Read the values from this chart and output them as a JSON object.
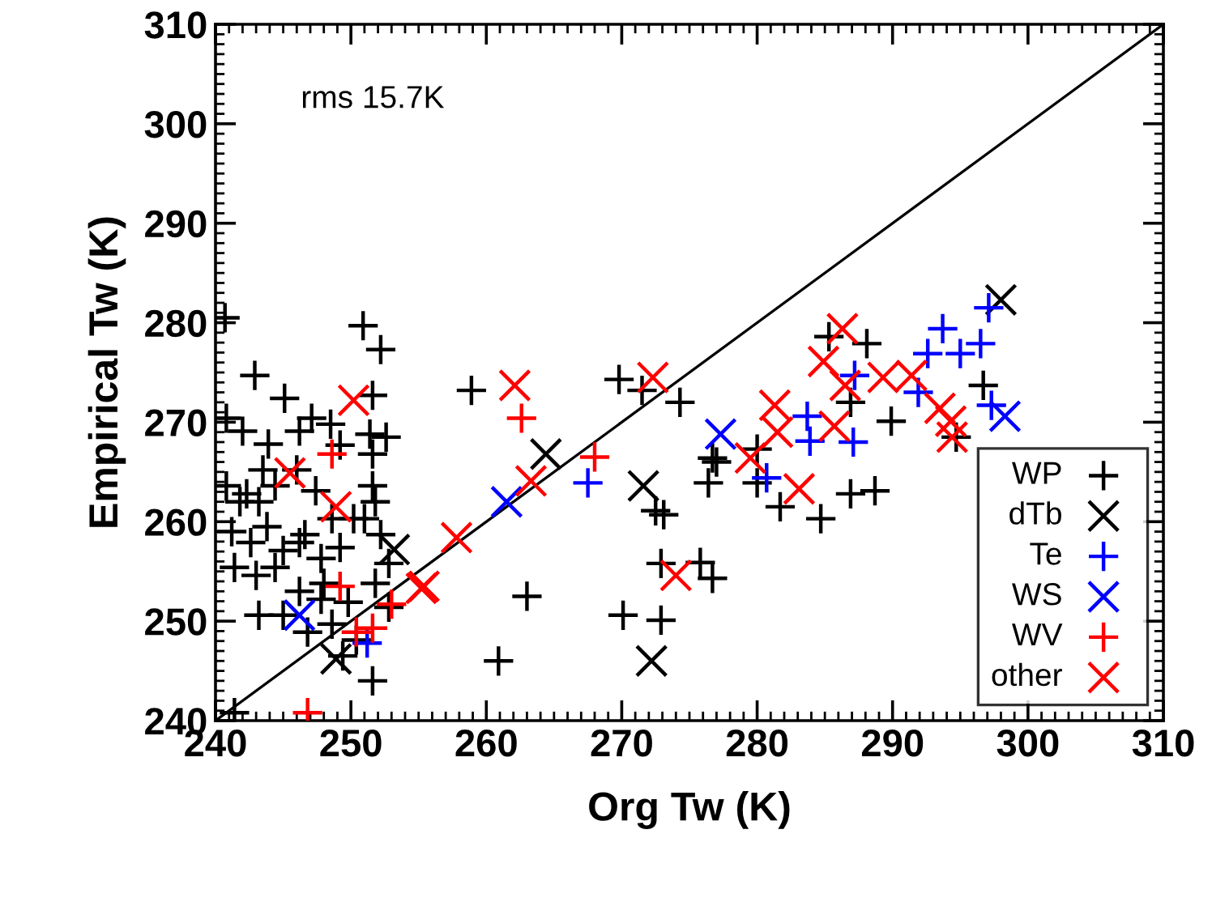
{
  "chart_data": {
    "type": "scatter",
    "xlabel": "Org Tw (K)",
    "ylabel": "Empirical Tw (K)",
    "xlim": [
      240,
      310
    ],
    "ylim": [
      240,
      310
    ],
    "xticks": [
      240,
      250,
      260,
      270,
      280,
      290,
      300,
      310
    ],
    "yticks": [
      240,
      250,
      260,
      270,
      280,
      290,
      300,
      310
    ],
    "grid": false,
    "legend": "bottom right",
    "annotations": [
      "rms 15.7K"
    ],
    "series": [
      {
        "name": "WP",
        "color": "#000000",
        "marker": "plus",
        "x": [
          240.7,
          242.9,
          245.1,
          247.1,
          250.9,
          252.2,
          251.6,
          240.8,
          242.0,
          243.9,
          246.2,
          248.5,
          249.2,
          251.4,
          252.6,
          240.8,
          242.3,
          243.2,
          244.4,
          246.0,
          247.4,
          248.6,
          250.2,
          251.8,
          241.2,
          242.6,
          243.8,
          245.0,
          246.6,
          247.8,
          249.2,
          251.0,
          252.2,
          241.4,
          243.0,
          244.4,
          246.2,
          248.0,
          249.8,
          251.8,
          252.8,
          243.2,
          245.0,
          246.8,
          248.6,
          250.4,
          249.4,
          251.6,
          241.4,
          247.8,
          246.2,
          241.8,
          243.5,
          251.6,
          251.6,
          252.8,
          258.9,
          269.8,
          271.5,
          274.3,
          276.7,
          276.4,
          272.5,
          273.1,
          272.9,
          275.8,
          276.7,
          263.0,
          270.1,
          272.9,
          260.9,
          285.3,
          288.1,
          286.9,
          289.9,
          277.0,
          280.0,
          280.0,
          281.7,
          284.7,
          286.9,
          288.7,
          296.7,
          294.7
        ],
        "values": [
          280.5,
          274.7,
          272.4,
          270.4,
          279.7,
          277.3,
          272.7,
          270.4,
          269.1,
          267.8,
          269.1,
          269.8,
          267.7,
          268.8,
          268.5,
          263.6,
          262.8,
          262.0,
          263.6,
          265.2,
          263.1,
          260.3,
          260.3,
          262.0,
          259.0,
          257.9,
          259.5,
          257.1,
          258.7,
          256.3,
          257.4,
          260.3,
          258.7,
          255.4,
          254.6,
          255.4,
          253.0,
          253.8,
          251.9,
          253.8,
          255.8,
          250.6,
          250.6,
          248.9,
          249.7,
          248.1,
          246.5,
          244.0,
          240.8,
          252.2,
          257.9,
          262.0,
          265.2,
          266.8,
          263.6,
          251.4,
          273.2,
          274.3,
          273.2,
          272.0,
          266.4,
          263.9,
          261.1,
          260.7,
          255.8,
          255.9,
          254.3,
          252.5,
          250.6,
          250.1,
          246.0,
          278.6,
          277.9,
          272.0,
          270.1,
          266.0,
          267.3,
          263.9,
          261.5,
          260.3,
          262.8,
          263.1,
          273.7,
          268.5
        ]
      },
      {
        "name": "dTb",
        "color": "#000000",
        "marker": "cross",
        "x": [
          298.0,
          264.4,
          271.6,
          272.2,
          253.2,
          248.9
        ],
        "values": [
          282.3,
          266.8,
          263.6,
          246.0,
          257.2,
          246.2
        ]
      },
      {
        "name": "Te",
        "color": "#0000ff",
        "marker": "plus",
        "x": [
          297.1,
          293.7,
          296.5,
          295.0,
          292.6,
          287.2,
          291.9,
          283.7,
          283.9,
          287.1,
          280.7,
          297.3,
          267.5,
          251.2
        ],
        "values": [
          281.5,
          279.4,
          277.9,
          276.9,
          276.9,
          274.7,
          273.0,
          270.6,
          268.1,
          268.0,
          264.4,
          271.7,
          263.9,
          247.8
        ]
      },
      {
        "name": "WS",
        "color": "#0000ff",
        "marker": "cross",
        "x": [
          277.3,
          298.3,
          261.5,
          246.2
        ],
        "values": [
          268.8,
          270.6,
          262.0,
          250.6
        ]
      },
      {
        "name": "WV",
        "color": "#ff0000",
        "marker": "plus",
        "x": [
          262.6,
          268.0,
          248.6,
          249.2,
          253.0,
          250.4,
          251.6,
          246.8
        ],
        "values": [
          270.4,
          266.5,
          266.8,
          253.5,
          251.7,
          248.9,
          249.3,
          240.8
        ]
      },
      {
        "name": "other",
        "color": "#ff0000",
        "marker": "cross",
        "x": [
          262.1,
          272.3,
          263.3,
          257.8,
          255.2,
          274.0,
          286.3,
          284.9,
          286.5,
          289.3,
          291.4,
          281.3,
          281.5,
          285.7,
          279.5,
          283.1,
          293.5,
          294.3,
          294.4,
          250.2,
          245.5,
          248.9,
          255.4
        ],
        "values": [
          273.7,
          274.5,
          264.1,
          258.4,
          253.3,
          254.6,
          279.4,
          276.1,
          273.7,
          274.5,
          274.7,
          271.7,
          269.0,
          269.6,
          266.4,
          263.3,
          271.4,
          270.1,
          268.5,
          272.2,
          264.9,
          261.5,
          253.5
        ]
      },
      {
        "type": "line",
        "color": "#000000",
        "marker": "none",
        "x": [
          240,
          310
        ],
        "values": [
          240,
          310
        ]
      }
    ]
  }
}
